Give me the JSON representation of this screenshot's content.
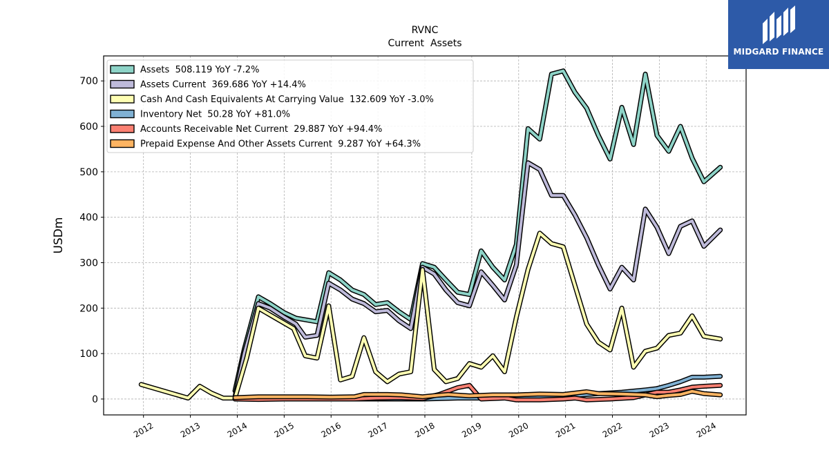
{
  "chart_data": {
    "type": "line",
    "title": "RVNC",
    "subtitle": "Current  Assets",
    "ylabel": "USDm",
    "xlabel": "",
    "ylim": [
      -35,
      755
    ],
    "xlim": [
      2011.15,
      2024.85
    ],
    "x_ticks": [
      2012,
      2013,
      2014,
      2015,
      2016,
      2017,
      2018,
      2019,
      2020,
      2021,
      2022,
      2023,
      2024
    ],
    "x_tick_labels": [
      "2012",
      "2013",
      "2014",
      "2015",
      "2016",
      "2017",
      "2018",
      "2019",
      "2020",
      "2021",
      "2022",
      "2023",
      "2024"
    ],
    "y_ticks": [
      0,
      100,
      200,
      300,
      400,
      500,
      600,
      700
    ],
    "y_tick_labels": [
      "0",
      "100",
      "200",
      "300",
      "400",
      "500",
      "600",
      "700"
    ],
    "grid": true,
    "legend_position": "top-left",
    "series": [
      {
        "name": "Assets  508.119 YoY -7.2%",
        "color": "#8dd3c7",
        "x": [
          2013.95,
          2014.15,
          2014.45,
          2014.7,
          2015.0,
          2015.25,
          2015.7,
          2015.95,
          2016.2,
          2016.45,
          2016.7,
          2016.95,
          2017.2,
          2017.45,
          2017.7,
          2017.95,
          2018.2,
          2018.45,
          2018.7,
          2018.95,
          2019.2,
          2019.45,
          2019.7,
          2019.95,
          2020.2,
          2020.45,
          2020.7,
          2020.95,
          2021.2,
          2021.45,
          2021.7,
          2021.95,
          2022.2,
          2022.45,
          2022.7,
          2022.95,
          2023.2,
          2023.45,
          2023.7,
          2023.95,
          2024.3
        ],
        "values": [
          18,
          110,
          225,
          210,
          190,
          178,
          170,
          278,
          262,
          240,
          230,
          208,
          212,
          192,
          175,
          298,
          290,
          262,
          235,
          230,
          326,
          290,
          262,
          340,
          595,
          572,
          715,
          722,
          675,
          640,
          580,
          528,
          642,
          560,
          715,
          580,
          545,
          600,
          530,
          478,
          510
        ]
      },
      {
        "name": "Assets Current  369.686 YoY +14.4%",
        "color": "#bebada",
        "x": [
          2013.95,
          2014.15,
          2014.45,
          2014.7,
          2015.0,
          2015.25,
          2015.45,
          2015.7,
          2015.95,
          2016.2,
          2016.45,
          2016.7,
          2016.95,
          2017.2,
          2017.45,
          2017.7,
          2017.95,
          2018.2,
          2018.45,
          2018.7,
          2018.95,
          2019.2,
          2019.45,
          2019.7,
          2019.95,
          2020.2,
          2020.45,
          2020.7,
          2020.95,
          2021.2,
          2021.45,
          2021.7,
          2021.95,
          2022.2,
          2022.45,
          2022.7,
          2022.95,
          2023.2,
          2023.45,
          2023.7,
          2023.95,
          2024.3
        ],
        "values": [
          5,
          100,
          210,
          200,
          180,
          165,
          136,
          140,
          255,
          240,
          220,
          210,
          192,
          195,
          172,
          155,
          290,
          275,
          240,
          212,
          205,
          280,
          250,
          218,
          295,
          520,
          505,
          448,
          448,
          405,
          355,
          295,
          242,
          290,
          262,
          418,
          378,
          320,
          380,
          392,
          336,
          372
        ]
      },
      {
        "name": "Cash And Cash Equivalents At Carrying Value  132.609 YoY -3.0%",
        "color": "#ffffb3",
        "x": [
          2011.95,
          2012.95,
          2013.2,
          2013.45,
          2013.7,
          2013.95,
          2014.2,
          2014.45,
          2014.7,
          2015.2,
          2015.45,
          2015.7,
          2015.95,
          2016.2,
          2016.45,
          2016.7,
          2016.95,
          2017.2,
          2017.45,
          2017.7,
          2017.95,
          2018.2,
          2018.45,
          2018.7,
          2018.95,
          2019.2,
          2019.45,
          2019.7,
          2019.95,
          2020.2,
          2020.45,
          2020.7,
          2020.95,
          2021.2,
          2021.45,
          2021.7,
          2021.95,
          2022.2,
          2022.45,
          2022.7,
          2022.95,
          2023.2,
          2023.45,
          2023.7,
          2023.95,
          2024.3
        ],
        "values": [
          32,
          2,
          28,
          13,
          2,
          2,
          90,
          200,
          185,
          155,
          95,
          90,
          205,
          42,
          50,
          135,
          60,
          38,
          55,
          60,
          285,
          65,
          38,
          45,
          78,
          70,
          95,
          60,
          180,
          285,
          365,
          342,
          335,
          250,
          165,
          125,
          108,
          200,
          70,
          105,
          112,
          140,
          145,
          183,
          138,
          132
        ]
      },
      {
        "name": "Inventory Net  50.28 YoY +81.0%",
        "color": "#80b1d3",
        "x": [
          2013.95,
          2015.0,
          2016.0,
          2017.0,
          2017.95,
          2018.7,
          2019.2,
          2019.7,
          2020.2,
          2020.7,
          2021.2,
          2021.7,
          2022.2,
          2022.7,
          2022.95,
          2023.2,
          2023.45,
          2023.7,
          2023.95,
          2024.3
        ],
        "values": [
          0,
          0,
          0,
          0,
          0,
          2,
          2,
          3,
          5,
          5,
          8,
          12,
          15,
          20,
          23,
          30,
          38,
          48,
          48,
          50
        ]
      },
      {
        "name": "Accounts Receivable Net Current  29.887 YoY +94.4%",
        "color": "#fb8072",
        "x": [
          2013.95,
          2014.45,
          2015.0,
          2015.5,
          2016.0,
          2016.5,
          2016.95,
          2017.45,
          2017.95,
          2018.3,
          2018.7,
          2018.95,
          2019.2,
          2019.7,
          2019.95,
          2020.45,
          2020.95,
          2021.2,
          2021.45,
          2021.95,
          2022.45,
          2022.95,
          2023.2,
          2023.45,
          2023.7,
          2023.95,
          2024.3
        ],
        "values": [
          0,
          -1,
          0,
          0,
          0,
          0,
          2,
          3,
          1,
          10,
          25,
          30,
          0,
          2,
          -2,
          -2,
          0,
          2,
          -2,
          0,
          3,
          15,
          15,
          20,
          26,
          28,
          30
        ]
      },
      {
        "name": "Prepaid Expense And Other Assets Current  9.287 YoY +64.3%",
        "color": "#fdb462",
        "x": [
          2013.95,
          2014.45,
          2015.0,
          2015.5,
          2016.0,
          2016.5,
          2016.7,
          2017.2,
          2017.5,
          2017.95,
          2018.25,
          2018.5,
          2018.95,
          2019.45,
          2019.95,
          2020.45,
          2020.95,
          2021.45,
          2021.7,
          2022.2,
          2022.7,
          2022.95,
          2023.2,
          2023.45,
          2023.7,
          2023.95,
          2024.3
        ],
        "values": [
          3,
          5,
          5,
          5,
          4,
          5,
          10,
          10,
          9,
          5,
          8,
          10,
          7,
          9,
          9,
          11,
          10,
          16,
          12,
          11,
          9,
          5,
          8,
          10,
          17,
          12,
          9
        ]
      }
    ]
  },
  "logo": {
    "text": "MIDGARD FINANCE",
    "bg_color": "#2d5aa8",
    "icon": "midgard-monogram-icon"
  }
}
